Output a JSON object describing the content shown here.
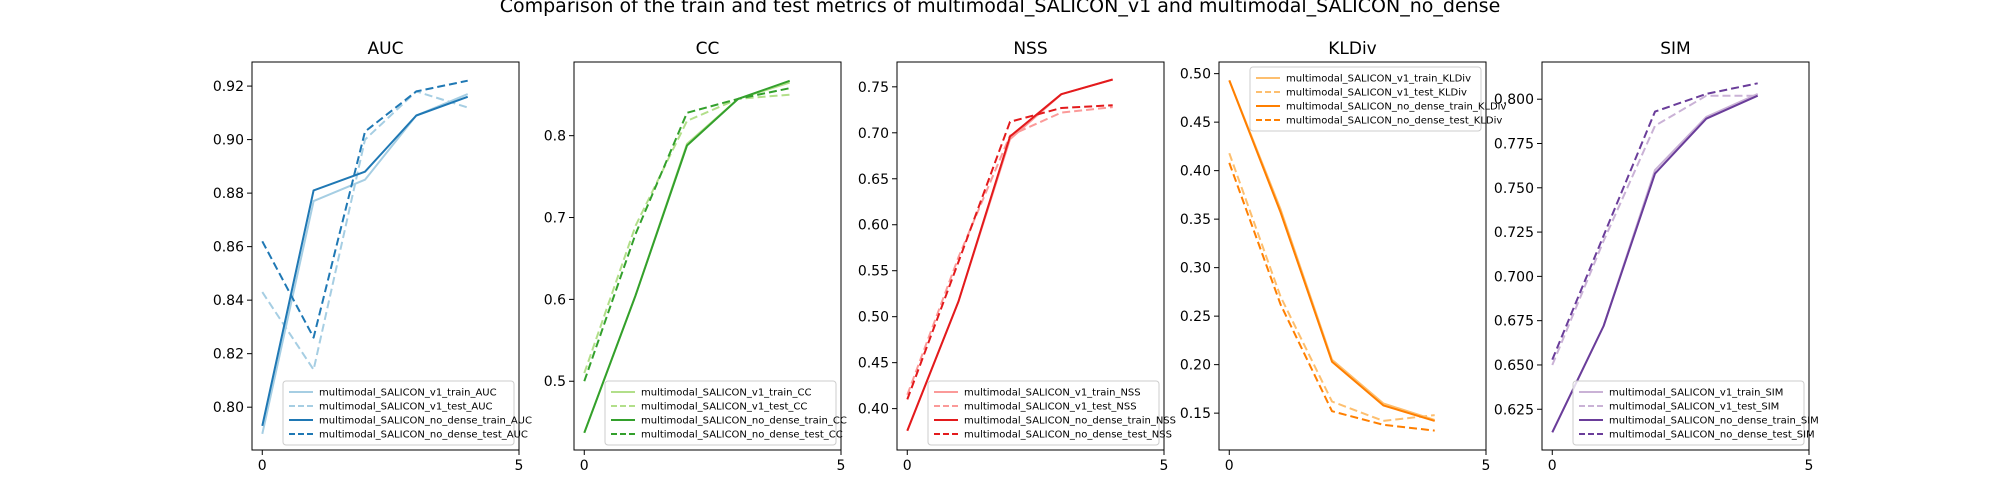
{
  "figure": {
    "suptitle": "Comparison of the train and test metrics of multimodal_SALICON_v1 and multimodal_SALICON_no_dense"
  },
  "chart_data": [
    {
      "type": "line",
      "title": "AUC",
      "xlim": [
        -0.2,
        5
      ],
      "ylim": [
        0.784,
        0.929
      ],
      "xticks": [
        0,
        5
      ],
      "yticks": [
        0.8,
        0.82,
        0.84,
        0.86,
        0.88,
        0.9,
        0.92
      ],
      "yticklabels": [
        "0.80",
        "0.82",
        "0.84",
        "0.86",
        "0.88",
        "0.90",
        "0.92"
      ],
      "legend_position": "lower-right",
      "x": [
        0,
        1,
        2,
        3,
        4
      ],
      "series": [
        {
          "name": "multimodal_SALICON_v1_train_AUC",
          "color": "#a6cee3",
          "dash": "solid",
          "values": [
            0.79,
            0.877,
            0.885,
            0.909,
            0.917
          ]
        },
        {
          "name": "multimodal_SALICON_v1_test_AUC",
          "color": "#a6cee3",
          "dash": "dashed",
          "values": [
            0.843,
            0.814,
            0.9,
            0.918,
            0.912
          ]
        },
        {
          "name": "multimodal_SALICON_no_dense_train_AUC",
          "color": "#1f78b4",
          "dash": "solid",
          "values": [
            0.793,
            0.881,
            0.888,
            0.909,
            0.916
          ]
        },
        {
          "name": "multimodal_SALICON_no_dense_test_AUC",
          "color": "#1f78b4",
          "dash": "dashed",
          "values": [
            0.862,
            0.826,
            0.903,
            0.918,
            0.922
          ]
        }
      ]
    },
    {
      "type": "line",
      "title": "CC",
      "xlim": [
        -0.2,
        5
      ],
      "ylim": [
        0.416,
        0.89
      ],
      "xticks": [
        0,
        5
      ],
      "yticks": [
        0.5,
        0.6,
        0.7,
        0.8
      ],
      "yticklabels": [
        "0.5",
        "0.6",
        "0.7",
        "0.8"
      ],
      "legend_position": "lower-right",
      "x": [
        0,
        1,
        2,
        3,
        4
      ],
      "series": [
        {
          "name": "multimodal_SALICON_v1_train_CC",
          "color": "#b2df8a",
          "dash": "solid",
          "values": [
            0.437,
            0.605,
            0.79,
            0.845,
            0.865
          ]
        },
        {
          "name": "multimodal_SALICON_v1_test_CC",
          "color": "#b2df8a",
          "dash": "dashed",
          "values": [
            0.51,
            0.69,
            0.818,
            0.845,
            0.85
          ]
        },
        {
          "name": "multimodal_SALICON_no_dense_train_CC",
          "color": "#33a02c",
          "dash": "solid",
          "values": [
            0.437,
            0.605,
            0.788,
            0.845,
            0.867
          ]
        },
        {
          "name": "multimodal_SALICON_no_dense_test_CC",
          "color": "#33a02c",
          "dash": "dashed",
          "values": [
            0.5,
            0.68,
            0.828,
            0.845,
            0.858
          ]
        }
      ]
    },
    {
      "type": "line",
      "title": "NSS",
      "xlim": [
        -0.2,
        5
      ],
      "ylim": [
        0.355,
        0.777
      ],
      "xticks": [
        0,
        5
      ],
      "yticks": [
        0.4,
        0.45,
        0.5,
        0.55,
        0.6,
        0.65,
        0.7,
        0.75
      ],
      "yticklabels": [
        "0.40",
        "0.45",
        "0.50",
        "0.55",
        "0.60",
        "0.65",
        "0.70",
        "0.75"
      ],
      "legend_position": "lower-right",
      "x": [
        0,
        1,
        2,
        3,
        4
      ],
      "series": [
        {
          "name": "multimodal_SALICON_v1_train_NSS",
          "color": "#fb9a99",
          "dash": "solid",
          "values": [
            0.376,
            0.517,
            0.693,
            0.742,
            0.758
          ]
        },
        {
          "name": "multimodal_SALICON_v1_test_NSS",
          "color": "#fb9a99",
          "dash": "dashed",
          "values": [
            0.415,
            0.565,
            0.697,
            0.722,
            0.728
          ]
        },
        {
          "name": "multimodal_SALICON_no_dense_train_NSS",
          "color": "#e31a1c",
          "dash": "solid",
          "values": [
            0.376,
            0.517,
            0.696,
            0.742,
            0.758
          ]
        },
        {
          "name": "multimodal_SALICON_no_dense_test_NSS",
          "color": "#e31a1c",
          "dash": "dashed",
          "values": [
            0.41,
            0.56,
            0.712,
            0.727,
            0.73
          ]
        }
      ]
    },
    {
      "type": "line",
      "title": "KLDiv",
      "xlim": [
        -0.2,
        5
      ],
      "ylim": [
        0.112,
        0.512
      ],
      "xticks": [
        0,
        5
      ],
      "yticks": [
        0.15,
        0.2,
        0.25,
        0.3,
        0.35,
        0.4,
        0.45,
        0.5
      ],
      "yticklabels": [
        "0.15",
        "0.20",
        "0.25",
        "0.30",
        "0.35",
        "0.40",
        "0.45",
        "0.50"
      ],
      "legend_position": "upper-right",
      "x": [
        0,
        1,
        2,
        3,
        4
      ],
      "series": [
        {
          "name": "multimodal_SALICON_v1_train_KLDiv",
          "color": "#fdbf6f",
          "dash": "solid",
          "values": [
            0.493,
            0.36,
            0.205,
            0.16,
            0.143
          ]
        },
        {
          "name": "multimodal_SALICON_v1_test_KLDiv",
          "color": "#fdbf6f",
          "dash": "dashed",
          "values": [
            0.418,
            0.27,
            0.162,
            0.142,
            0.148
          ]
        },
        {
          "name": "multimodal_SALICON_no_dense_train_KLDiv",
          "color": "#ff7f00",
          "dash": "solid",
          "values": [
            0.493,
            0.357,
            0.203,
            0.158,
            0.142
          ]
        },
        {
          "name": "multimodal_SALICON_no_dense_test_KLDiv",
          "color": "#ff7f00",
          "dash": "dashed",
          "values": [
            0.408,
            0.262,
            0.152,
            0.138,
            0.132
          ]
        }
      ]
    },
    {
      "type": "line",
      "title": "SIM",
      "xlim": [
        -0.2,
        5
      ],
      "ylim": [
        0.602,
        0.821
      ],
      "xticks": [
        0,
        5
      ],
      "yticks": [
        0.625,
        0.65,
        0.675,
        0.7,
        0.725,
        0.75,
        0.775,
        0.8
      ],
      "yticklabels": [
        "0.625",
        "0.650",
        "0.675",
        "0.700",
        "0.725",
        "0.750",
        "0.775",
        "0.800"
      ],
      "legend_position": "lower-right",
      "x": [
        0,
        1,
        2,
        3,
        4
      ],
      "series": [
        {
          "name": "multimodal_SALICON_v1_train_SIM",
          "color": "#cab2d6",
          "dash": "solid",
          "values": [
            0.612,
            0.672,
            0.76,
            0.79,
            0.803
          ]
        },
        {
          "name": "multimodal_SALICON_v1_test_SIM",
          "color": "#cab2d6",
          "dash": "dashed",
          "values": [
            0.65,
            0.72,
            0.785,
            0.802,
            0.802
          ]
        },
        {
          "name": "multimodal_SALICON_no_dense_train_SIM",
          "color": "#6a3d9a",
          "dash": "solid",
          "values": [
            0.612,
            0.672,
            0.758,
            0.789,
            0.802
          ]
        },
        {
          "name": "multimodal_SALICON_no_dense_test_SIM",
          "color": "#6a3d9a",
          "dash": "dashed",
          "values": [
            0.653,
            0.723,
            0.793,
            0.803,
            0.809
          ]
        }
      ]
    }
  ]
}
